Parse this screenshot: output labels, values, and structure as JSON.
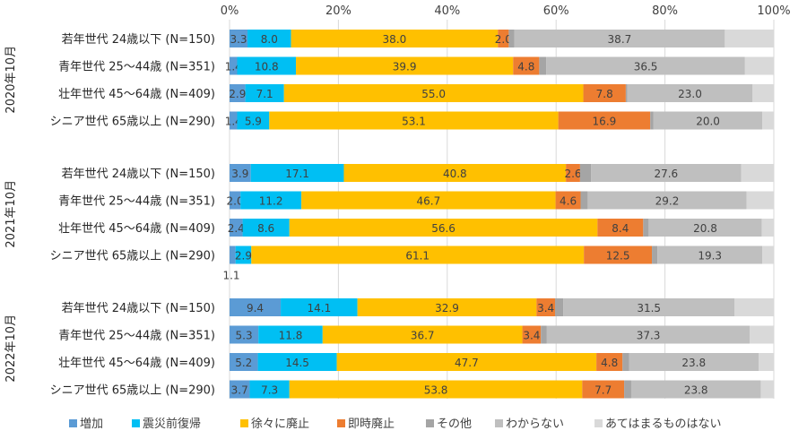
{
  "chart_data": {
    "type": "bar",
    "orientation": "horizontal",
    "stacked": true,
    "xlim": [
      0,
      100
    ],
    "x_ticks": [
      "0%",
      "20%",
      "40%",
      "60%",
      "80%",
      "100%"
    ],
    "grid": true,
    "legend_position": "bottom",
    "series": [
      {
        "name": "増加",
        "color": "#5B9BD5"
      },
      {
        "name": "震災前復帰",
        "color": "#00BFF3"
      },
      {
        "name": "徐々に廃止",
        "color": "#FFC000"
      },
      {
        "name": "即時廃止",
        "color": "#ED7D31"
      },
      {
        "name": "その他",
        "color": "#A5A5A5"
      },
      {
        "name": "わからない",
        "color": "#BFBFBF"
      },
      {
        "name": "あてはまるものはない",
        "color": "#D9D9D9"
      }
    ],
    "groups": [
      {
        "label": "2020年10月",
        "rows": [
          {
            "category": "若年世代",
            "age": "24歳以下",
            "n": "(N=150)",
            "values": [
              3.3,
              8.0,
              38.0,
              2.0,
              1.0,
              38.7,
              9.0
            ],
            "labels": [
              "3.3",
              "8.0",
              "38.0",
              "2.0",
              "",
              "38.7",
              ""
            ]
          },
          {
            "category": "青年世代",
            "age": "25～44歳",
            "n": "(N=351)",
            "values": [
              1.4,
              10.8,
              39.9,
              4.8,
              1.3,
              36.5,
              5.3
            ],
            "labels": [
              "1.4",
              "10.8",
              "39.9",
              "4.8",
              "",
              "36.5",
              ""
            ]
          },
          {
            "category": "壮年世代",
            "age": "45～64歳",
            "n": "(N=409)",
            "values": [
              2.9,
              7.1,
              55.0,
              7.8,
              0.3,
              23.0,
              3.9
            ],
            "labels": [
              "2.9",
              "7.1",
              "55.0",
              "7.8",
              "",
              "23.0",
              ""
            ]
          },
          {
            "category": "シニア世代",
            "age": "65歳以上",
            "n": "(N=290)",
            "values": [
              1.4,
              5.9,
              53.1,
              16.9,
              0.6,
              20.0,
              2.1
            ],
            "labels": [
              "1.4",
              "5.9",
              "53.1",
              "16.9",
              "",
              "20.0",
              ""
            ]
          }
        ]
      },
      {
        "label": "2021年10月",
        "rows": [
          {
            "category": "若年世代",
            "age": "24歳以下",
            "n": "(N=150)",
            "values": [
              3.9,
              17.1,
              40.8,
              2.6,
              2.0,
              27.6,
              6.0
            ],
            "labels": [
              "3.9",
              "17.1",
              "40.8",
              "2.6",
              "",
              "27.6",
              ""
            ]
          },
          {
            "category": "青年世代",
            "age": "25～44歳",
            "n": "(N=351)",
            "values": [
              2.0,
              11.2,
              46.7,
              4.6,
              1.3,
              29.2,
              5.0
            ],
            "labels": [
              "2.0",
              "11.2",
              "46.7",
              "4.6",
              "",
              "29.2",
              ""
            ]
          },
          {
            "category": "壮年世代",
            "age": "45～64歳",
            "n": "(N=409)",
            "values": [
              2.4,
              8.6,
              56.6,
              8.4,
              1.0,
              20.8,
              2.2
            ],
            "labels": [
              "2.4",
              "8.6",
              "56.6",
              "8.4",
              "",
              "20.8",
              ""
            ]
          },
          {
            "category": "シニア世代",
            "age": "65歳以上",
            "n": "(N=290)",
            "values": [
              1.1,
              2.9,
              61.1,
              12.5,
              1.0,
              19.3,
              2.1
            ],
            "labels": [
              "1.1",
              "2.9",
              "61.1",
              "12.5",
              "",
              "19.3",
              ""
            ]
          }
        ]
      },
      {
        "label": "2022年10月",
        "rows": [
          {
            "category": "若年世代",
            "age": "24歳以下",
            "n": "(N=150)",
            "values": [
              9.4,
              14.1,
              32.9,
              3.4,
              1.5,
              31.5,
              7.2
            ],
            "labels": [
              "9.4",
              "14.1",
              "32.9",
              "3.4",
              "",
              "31.5",
              ""
            ]
          },
          {
            "category": "青年世代",
            "age": "25～44歳",
            "n": "(N=351)",
            "values": [
              5.3,
              11.8,
              36.7,
              3.4,
              1.1,
              37.3,
              4.4
            ],
            "labels": [
              "5.3",
              "11.8",
              "36.7",
              "3.4",
              "",
              "37.3",
              ""
            ]
          },
          {
            "category": "壮年世代",
            "age": "45～64歳",
            "n": "(N=409)",
            "values": [
              5.2,
              14.5,
              47.7,
              4.8,
              1.2,
              23.8,
              2.8
            ],
            "labels": [
              "5.2",
              "14.5",
              "47.7",
              "4.8",
              "",
              "23.8",
              ""
            ]
          },
          {
            "category": "シニア世代",
            "age": "65歳以上",
            "n": "(N=290)",
            "values": [
              3.7,
              7.3,
              53.8,
              7.7,
              1.3,
              23.8,
              2.4
            ],
            "labels": [
              "3.7",
              "7.3",
              "53.8",
              "7.7",
              "",
              "23.8",
              ""
            ]
          }
        ]
      }
    ]
  }
}
